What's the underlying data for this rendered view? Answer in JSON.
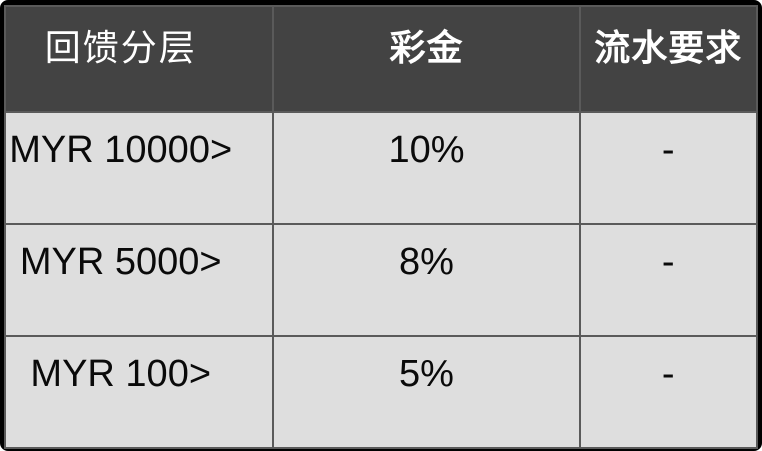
{
  "chart_data": {
    "type": "table",
    "title": "",
    "columns": [
      "回馈分层",
      "彩金",
      "流水要求"
    ],
    "rows": [
      [
        "MYR 10000>",
        "10%",
        "-"
      ],
      [
        "MYR 5000>",
        "8%",
        "-"
      ],
      [
        "MYR 100>",
        "5%",
        "-"
      ]
    ]
  },
  "colors": {
    "outer_frame": "#000000",
    "header_bg": "#434343",
    "header_text": "#ffffff",
    "cell_bg": "#dedede",
    "cell_text": "#0a0a0a",
    "grid": "#5a5a5a"
  }
}
